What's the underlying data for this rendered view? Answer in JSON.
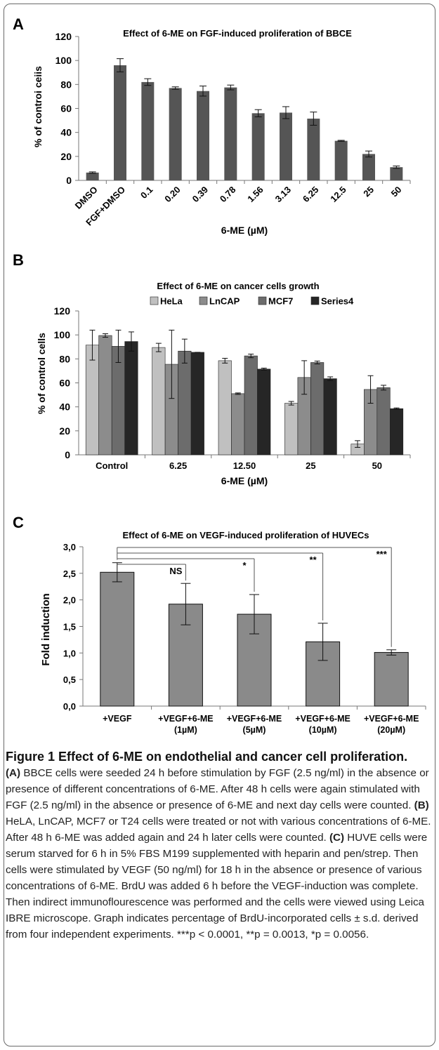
{
  "chart_data": [
    {
      "panel": "A",
      "type": "bar",
      "title": "Effect of 6-ME on FGF-induced proliferation of BBCE",
      "xlabel": "6-ME (µM)",
      "ylabel": "% of controi ceiis",
      "ylim": [
        0,
        120
      ],
      "yticks": [
        "0",
        "20",
        "40",
        "60",
        "80",
        "100",
        "120"
      ],
      "categories": [
        "DMSO",
        "FGF+DMSO",
        "0.1",
        "0.20",
        "0.39",
        "0.78",
        "1.56",
        "3.13",
        "6.25",
        "12.5",
        "25",
        "50"
      ],
      "values": [
        6.5,
        96,
        82,
        77,
        74.5,
        77.5,
        56,
        56.5,
        51.5,
        33,
        22,
        11
      ],
      "errors": [
        0.6,
        5.5,
        2.8,
        1,
        4.2,
        2,
        3,
        5,
        5.5,
        0.4,
        2.5,
        1
      ],
      "color": "#555555",
      "grid": false
    },
    {
      "panel": "B",
      "type": "bar",
      "title": "Effect of 6-ME on cancer cells growth",
      "xlabel": "6-ME (µM)",
      "ylabel": "% of control cells",
      "ylim": [
        0,
        120
      ],
      "yticks": [
        "0",
        "20",
        "40",
        "60",
        "80",
        "100",
        "120"
      ],
      "categories": [
        "Control",
        "6.25",
        "12.50",
        "25",
        "50"
      ],
      "legend_position": "top",
      "series": [
        {
          "name": "HeLa",
          "color": "#c0c0c0",
          "values": [
            91.5,
            89.5,
            78.5,
            43,
            9
          ],
          "errors": [
            12.5,
            3.5,
            2,
            1.5,
            2.8
          ]
        },
        {
          "name": "LnCAP",
          "color": "#8c8c8c",
          "values": [
            99.5,
            75.5,
            51,
            64.5,
            54.5
          ],
          "errors": [
            1.5,
            28.5,
            0.6,
            14,
            11.5
          ]
        },
        {
          "name": "MCF7",
          "color": "#6c6c6c",
          "values": [
            90.5,
            86.5,
            82.5,
            77,
            56
          ],
          "errors": [
            13.5,
            10,
            1.5,
            1.2,
            2
          ]
        },
        {
          "name": "Series4",
          "color": "#262626",
          "values": [
            94.5,
            85.5,
            71.5,
            63.5,
            38.5
          ],
          "errors": [
            8,
            0,
            0.8,
            1.5,
            0.6
          ]
        }
      ],
      "grid": false
    },
    {
      "panel": "C",
      "type": "bar",
      "title": "Effect of 6-ME on VEGF-induced proliferation of HUVECs",
      "xlabel": "",
      "ylabel": "Fold induction",
      "ylim": [
        0,
        3
      ],
      "yticks": [
        "0,0",
        "0,5",
        "1,0",
        "1,5",
        "2,0",
        "2,5",
        "3,0"
      ],
      "categories": [
        [
          "+VEGF"
        ],
        [
          "+VEGF+6-ME",
          "(1µM)"
        ],
        [
          "+VEGF+6-ME",
          "(5µM)"
        ],
        [
          "+VEGF+6-ME",
          "(10µM)"
        ],
        [
          "+VEGF+6-ME",
          "(20µM)"
        ]
      ],
      "values": [
        2.52,
        1.92,
        1.73,
        1.21,
        1.01
      ],
      "errors": [
        0.18,
        0.39,
        0.37,
        0.35,
        0.05
      ],
      "color": "#8a8a8a",
      "significance": [
        {
          "label": "NS",
          "target": 1
        },
        {
          "label": "*",
          "target": 2
        },
        {
          "label": "**",
          "target": 3
        },
        {
          "label": "***",
          "target": 4
        }
      ],
      "grid": false
    }
  ],
  "caption": {
    "title": "Figure 1 Effect of 6-ME on endothelial and cancer cell proliferation.",
    "a_label": "(A)",
    "a_text": " BBCE cells were seeded 24 h before stimulation by FGF (2.5 ng/ml) in the absence or presence of different concentrations of 6-ME. After 48 h cells were again stimulated with FGF (2.5 ng/ml) in the absence or presence of 6-ME and next day cells were counted. ",
    "b_label": "(B)",
    "b_text": " HeLA, LnCAP, MCF7 or T24 cells were treated or not with various concentrations of 6-ME. After 48 h 6-ME was added again and 24 h later cells were counted. ",
    "c_label": "(C)",
    "c_text": " HUVE cells were serum starved for 6 h in 5% FBS M199 supplemented with heparin and pen/strep. Then cells were stimulated by VEGF (50 ng/ml) for 18 h in the absence or presence of various concentrations of 6-ME. BrdU was added 6 h before the VEGF-induction was complete. Then indirect immunoflourescence was performed and the cells were viewed using Leica IBRE microscope. Graph indicates percentage of BrdU-incorporated cells ± s.d. derived from four independent experiments. ***p < 0.0001, **p = 0.0013, *p = 0.0056."
  }
}
